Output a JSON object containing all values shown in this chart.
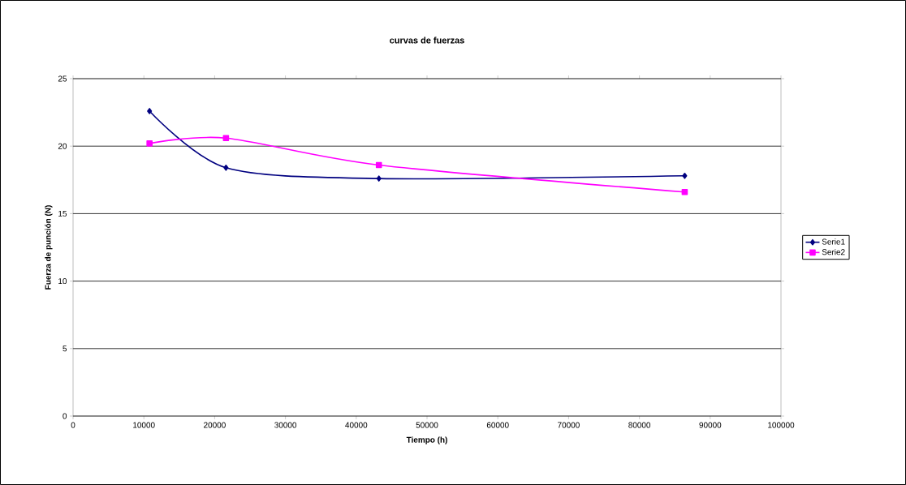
{
  "chart_data": {
    "type": "line",
    "title": "curvas de fuerzas",
    "xlabel": "Tiempo (h)",
    "ylabel": "Fuerza de punción (N)",
    "x": [
      10800,
      21600,
      43200,
      86400
    ],
    "series": [
      {
        "name": "Serie1",
        "color": "#000080",
        "marker": "diamond",
        "values": [
          22.6,
          18.4,
          17.6,
          17.8
        ]
      },
      {
        "name": "Serie2",
        "color": "#ff00ff",
        "marker": "square",
        "values": [
          20.2,
          20.6,
          18.6,
          16.6
        ]
      }
    ],
    "xlim": [
      0,
      100000
    ],
    "xticks": [
      0,
      10000,
      20000,
      30000,
      40000,
      50000,
      60000,
      70000,
      80000,
      90000,
      100000
    ],
    "ylim": [
      0,
      25
    ],
    "yticks": [
      0,
      5,
      10,
      15,
      20,
      25
    ],
    "grid": "y",
    "legend": "right"
  }
}
